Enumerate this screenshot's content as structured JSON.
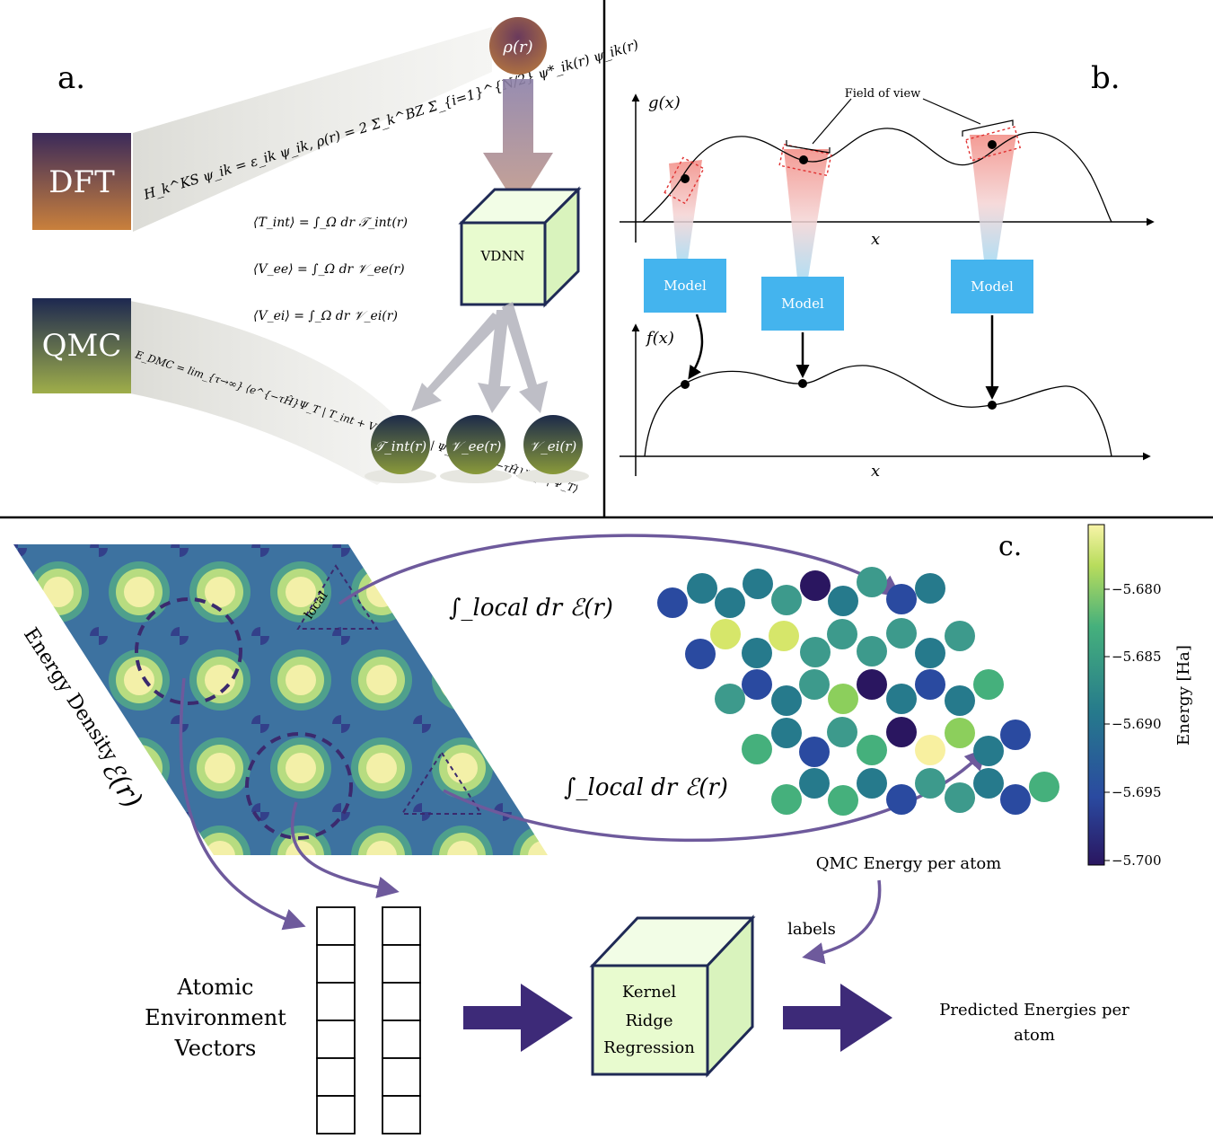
{
  "panel_a": {
    "label": "a.",
    "dft": "DFT",
    "qmc": "QMC",
    "rho": "ρ(r)",
    "vdnn": "VDNN",
    "ks_equation": "H_k^KS ψ_ik = ε_ik ψ_ik,  ρ(r) = 2 Σ_k^BZ Σ_{i=1}^{N/2} ψ*_ik(r) ψ_ik(r)",
    "dmc_equation": "E_DMC = lim_{τ→∞} ⟨e^{−τĤ}Ψ_T | T_int + V_ee + V_ei | Ψ_T⟩ / ⟨e^{−τĤ}Ψ_T | Ψ_T⟩",
    "integrals": [
      "⟨T_int⟩ = ∫_Ω dr 𝒯_int(r)",
      "⟨V_ee⟩ = ∫_Ω dr 𝒱_ee(r)",
      "⟨V_ei⟩ = ∫_Ω dr 𝒱_ei(r)"
    ],
    "outputs": [
      "𝒯_int(r)",
      "𝒱_ee(r)",
      "𝒱_ei(r)"
    ]
  },
  "panel_b": {
    "label": "b.",
    "g_axis": "g(x)",
    "f_axis": "f(x)",
    "x_axis_top": "x",
    "x_axis_bottom": "x",
    "field_of_view": "Field of view",
    "models": [
      "Model",
      "Model",
      "Model"
    ]
  },
  "panel_c": {
    "label": "c.",
    "energy_density": "Energy Density",
    "energy_symbol": "ℰ(r)",
    "local_label": "local",
    "integral_top": "∫_local dr ℰ(r)",
    "integral_bottom": "∫_local dr ℰ(r)",
    "qmc_energy_label": "QMC Energy per atom",
    "labels_label": "labels",
    "atomic_env": [
      "Atomic",
      "Environment",
      "Vectors"
    ],
    "krr": [
      "Kernel",
      "Ridge",
      "Regression"
    ],
    "predicted": [
      "Predicted Energies per",
      "atom"
    ],
    "colorbar": {
      "label": "Energy [Ha]",
      "ticks": [
        "−5.680",
        "−5.685",
        "−5.690",
        "−5.695",
        "−5.700"
      ],
      "min": -5.7015,
      "max": -5.6765
    }
  },
  "colors": {
    "purple_arrow": "#6e5a9c",
    "dark_purple": "#3d2a78",
    "box_green": "#e8fbcf",
    "model_blue": "#44b4ee",
    "red_dash": "#e03131"
  }
}
